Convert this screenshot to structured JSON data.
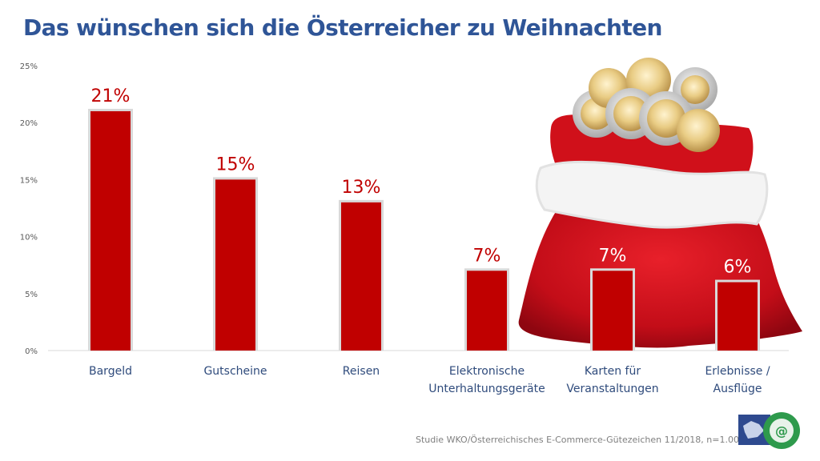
{
  "title": "Das wünschen sich die Österreicher zu Weihnachten",
  "source": "Studie WKO/Österreichisches E-Commerce-Gütezeichen 11/2018, n=1.004",
  "logo": {
    "icon": "e-commerce-guetezeichen-logo",
    "ring_text": "ÖSTERREICHISCHES E-COMMERCE-GÜTEZEICHEN"
  },
  "illustration": {
    "icon": "santa-sack-with-euro-coins"
  },
  "colors": {
    "title": "#2f5597",
    "bar": "#c00000",
    "bar_outline": "#d9d9d9",
    "value_label": "#c00000",
    "value_label_on_image": "#ffffff",
    "category_label": "#2f4b7c",
    "sack": "#d0101a",
    "fur": "#f4f4f4"
  },
  "chart_data": {
    "type": "bar",
    "title": "Das wünschen sich die Österreicher zu Weihnachten",
    "xlabel": "",
    "ylabel": "",
    "categories": [
      "Bargeld",
      "Gutscheine",
      "Reisen",
      "Elektronische Unterhaltungsgeräte",
      "Karten für Veranstaltungen",
      "Erlebnisse / Ausflüge"
    ],
    "category_lines": [
      [
        "Bargeld"
      ],
      [
        "Gutscheine"
      ],
      [
        "Reisen"
      ],
      [
        "Elektronische",
        "Unterhaltungsgeräte"
      ],
      [
        "Karten für",
        "Veranstaltungen"
      ],
      [
        "Erlebnisse /",
        "Ausflüge"
      ]
    ],
    "values": [
      21,
      15,
      13,
      7,
      7,
      6
    ],
    "value_labels": [
      "21%",
      "15%",
      "13%",
      "7%",
      "7%",
      "6%"
    ],
    "ylim": [
      0,
      25
    ],
    "yticks": [
      0,
      5,
      10,
      15,
      20,
      25
    ],
    "ytick_labels": [
      "0%",
      "5%",
      "10%",
      "15%",
      "20%",
      "25%"
    ],
    "grid": false,
    "legend": "none"
  }
}
